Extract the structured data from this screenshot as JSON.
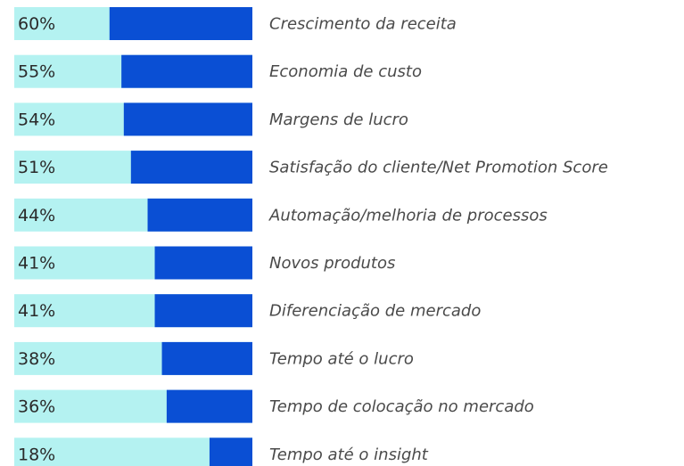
{
  "chart_data": {
    "type": "bar",
    "categories": [
      "Crescimento da receita",
      "Economia de custo",
      "Margens de lucro",
      "Satisfação do cliente/Net Promotion Score",
      "Automação/melhoria de processos",
      "Novos produtos",
      "Diferenciação de mercado",
      "Tempo até o lucro",
      "Tempo de colocação no mercado",
      "Tempo até o insight"
    ],
    "values": [
      60,
      55,
      54,
      51,
      44,
      41,
      41,
      38,
      36,
      18
    ],
    "value_labels": [
      "60%",
      "55%",
      "54%",
      "51%",
      "44%",
      "41%",
      "41%",
      "38%",
      "36%",
      "18%"
    ],
    "xlim": [
      0,
      100
    ],
    "color": "#0a4fd4",
    "track_color": "#b4f2f1"
  }
}
